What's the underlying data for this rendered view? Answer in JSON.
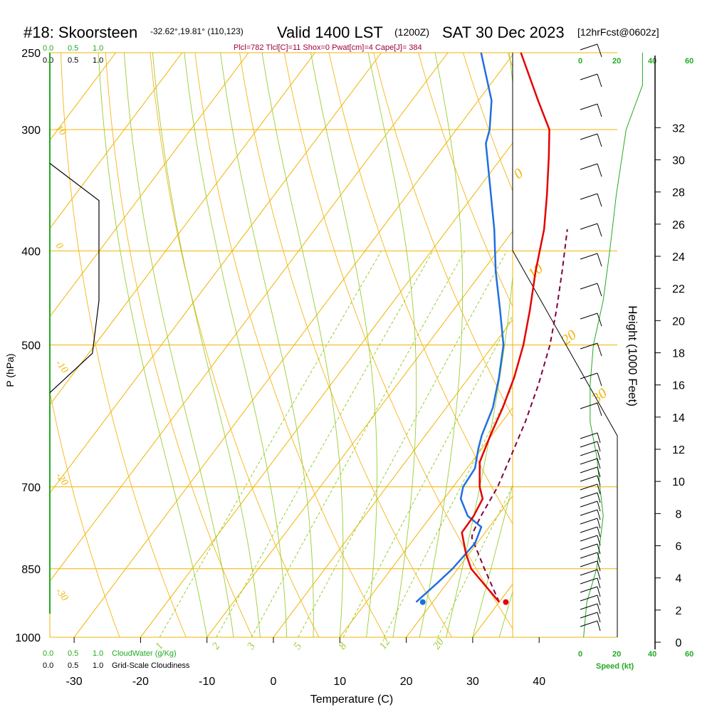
{
  "header": {
    "station": "#18: Skoorsteen",
    "coords": "-32.62°,19.81° (110,123)",
    "valid": "Valid 1400 LST",
    "zulu": "(1200Z)",
    "date": "SAT 30 Dec 2023",
    "forecast": "[12hrFcst@0602z]",
    "indices": "Plcl=782 Tlcl[C]=11 Shox=0 Pwat[cm]=4 Cape[J]= 384"
  },
  "colors": {
    "temperature": "#e60000",
    "dewpoint": "#1f6fe0",
    "parcel": "#800040",
    "isotherm": "#f0b400",
    "mixing_ratio": "#9acd32",
    "green_text": "#22aa22",
    "indices": "#a00040"
  },
  "scales": {
    "cloud_water_top": [
      "0.0",
      "0.5",
      "1.0"
    ],
    "cloudiness_top": [
      "0.0",
      "0.5",
      "1.0"
    ],
    "cloud_water_bottom": [
      "0.0",
      "0.5",
      "1.0"
    ],
    "cloudiness_bottom": [
      "0.0",
      "0.5",
      "1.0"
    ],
    "cloud_water_label": "CloudWater (g/Kg)",
    "cloudiness_label": "Grid-Scale Cloudiness",
    "speed_label": "Speed (kt)",
    "speed_ticks_black": [
      "0",
      "20",
      "40"
    ],
    "speed_ticks_green": [
      "20",
      "40",
      "60"
    ]
  },
  "chart_data": {
    "type": "skew-t",
    "xlabel": "Temperature (C)",
    "ylabel": "P (hPa)",
    "y2label": "Height (1000 Feet)",
    "x_ticks": [
      "-30",
      "-20",
      "-10",
      "0",
      "10",
      "20",
      "30",
      "40"
    ],
    "x_tick_values": [
      -30,
      -20,
      -10,
      0,
      10,
      20,
      30,
      40
    ],
    "p_ticks": [
      "250",
      "300",
      "400",
      "500",
      "700",
      "850",
      "1000"
    ],
    "p_tick_values": [
      250,
      300,
      400,
      500,
      700,
      850,
      1000
    ],
    "height_ticks": [
      "0",
      "2",
      "4",
      "6",
      "8",
      "10",
      "12",
      "14",
      "16",
      "18",
      "20",
      "22",
      "24",
      "26",
      "28",
      "30",
      "32"
    ],
    "height_tick_values": [
      0,
      2,
      4,
      6,
      8,
      10,
      12,
      14,
      16,
      18,
      20,
      22,
      24,
      26,
      28,
      30,
      32
    ],
    "isotherm_labels": [
      "10",
      "0",
      "-10",
      "-20",
      "-30",
      "0",
      "10",
      "20",
      "30"
    ],
    "mixing_ratio_labels": [
      "1",
      "2",
      "3",
      "5",
      "8",
      "12",
      "20"
    ],
    "mixing_ratio_values": [
      1,
      2,
      3,
      5,
      8,
      12,
      20
    ],
    "series": [
      {
        "name": "Temperature",
        "points": [
          {
            "p": 920,
            "t": 30
          },
          {
            "p": 880,
            "t": 25.5
          },
          {
            "p": 850,
            "t": 22
          },
          {
            "p": 820,
            "t": 19.5
          },
          {
            "p": 780,
            "t": 16.5
          },
          {
            "p": 750,
            "t": 16.4
          },
          {
            "p": 720,
            "t": 15.8
          },
          {
            "p": 700,
            "t": 14
          },
          {
            "p": 660,
            "t": 11.2
          },
          {
            "p": 620,
            "t": 9.8
          },
          {
            "p": 580,
            "t": 8.5
          },
          {
            "p": 540,
            "t": 6.8
          },
          {
            "p": 500,
            "t": 4.5
          },
          {
            "p": 460,
            "t": 1.5
          },
          {
            "p": 420,
            "t": -2
          },
          {
            "p": 380,
            "t": -5.5
          },
          {
            "p": 350,
            "t": -9
          },
          {
            "p": 320,
            "t": -13
          },
          {
            "p": 300,
            "t": -16
          },
          {
            "p": 280,
            "t": -21
          },
          {
            "p": 250,
            "t": -29
          }
        ]
      },
      {
        "name": "Dewpoint",
        "points": [
          {
            "p": 920,
            "t": 17.5
          },
          {
            "p": 880,
            "t": 18.5
          },
          {
            "p": 850,
            "t": 19.2
          },
          {
            "p": 800,
            "t": 19.7
          },
          {
            "p": 770,
            "t": 18.8
          },
          {
            "p": 750,
            "t": 15.5
          },
          {
            "p": 720,
            "t": 12.5
          },
          {
            "p": 700,
            "t": 11.5
          },
          {
            "p": 670,
            "t": 11.2
          },
          {
            "p": 640,
            "t": 9.5
          },
          {
            "p": 620,
            "t": 8.5
          },
          {
            "p": 580,
            "t": 7
          },
          {
            "p": 540,
            "t": 4.5
          },
          {
            "p": 500,
            "t": 1.5
          },
          {
            "p": 460,
            "t": -3
          },
          {
            "p": 420,
            "t": -8
          },
          {
            "p": 380,
            "t": -13
          },
          {
            "p": 340,
            "t": -19
          },
          {
            "p": 310,
            "t": -24
          },
          {
            "p": 300,
            "t": -25
          },
          {
            "p": 280,
            "t": -28
          },
          {
            "p": 250,
            "t": -35
          }
        ]
      },
      {
        "name": "Parcel",
        "points": [
          {
            "p": 920,
            "t": 30
          },
          {
            "p": 850,
            "t": 24
          },
          {
            "p": 790,
            "t": 18.6
          },
          {
            "p": 782,
            "t": 18.2
          },
          {
            "p": 750,
            "t": 17.5
          },
          {
            "p": 700,
            "t": 16.7
          },
          {
            "p": 650,
            "t": 15.2
          },
          {
            "p": 600,
            "t": 13.5
          },
          {
            "p": 550,
            "t": 11.3
          },
          {
            "p": 500,
            "t": 8.5
          },
          {
            "p": 460,
            "t": 5.5
          },
          {
            "p": 420,
            "t": 2
          },
          {
            "p": 380,
            "t": -2
          }
        ]
      }
    ],
    "surface_markers": {
      "temperature": 31,
      "dewpoint": 18.5,
      "p": 920
    },
    "cloudiness_profile": [
      {
        "p": 325,
        "v": 0.0
      },
      {
        "p": 355,
        "v": 0.75
      },
      {
        "p": 450,
        "v": 0.75
      },
      {
        "p": 510,
        "v": 0.65
      },
      {
        "p": 560,
        "v": 0.0
      }
    ],
    "wind_speed_profile": [
      {
        "p": 1000,
        "v": 2
      },
      {
        "p": 920,
        "v": 4
      },
      {
        "p": 850,
        "v": 10
      },
      {
        "p": 800,
        "v": 12
      },
      {
        "p": 750,
        "v": 14
      },
      {
        "p": 700,
        "v": 12
      },
      {
        "p": 650,
        "v": 10
      },
      {
        "p": 600,
        "v": 6
      },
      {
        "p": 550,
        "v": 6
      },
      {
        "p": 500,
        "v": 8
      },
      {
        "p": 450,
        "v": 14
      },
      {
        "p": 400,
        "v": 18
      },
      {
        "p": 350,
        "v": 22
      },
      {
        "p": 300,
        "v": 28
      },
      {
        "p": 270,
        "v": 38
      },
      {
        "p": 250,
        "v": 38
      }
    ]
  }
}
